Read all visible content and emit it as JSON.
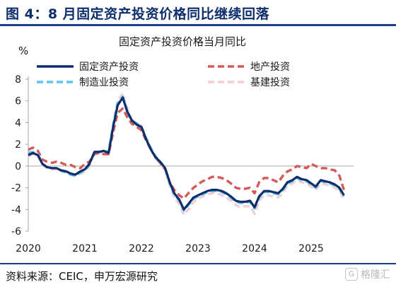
{
  "header": {
    "title": "图 4：8 月固定资产投资价格同比继续回落"
  },
  "footer": {
    "source": "资料来源：CEIC，申万宏源研究"
  },
  "watermark": {
    "text": "格隆汇",
    "icon": "gelonghui-logo-icon"
  },
  "chart_data": {
    "type": "line",
    "title": "固定资产投资价格当月同比",
    "ylabel": "%",
    "xlabel": "",
    "ylim": [
      -6,
      8
    ],
    "yticks": [
      -6,
      -4,
      -2,
      0,
      2,
      4,
      6,
      8
    ],
    "xlim": [
      2020.0,
      2025.75
    ],
    "xtick_labels": [
      "2020",
      "2021",
      "2022",
      "2023",
      "2024",
      "2025"
    ],
    "grid": false,
    "legend_position": "top",
    "x": [
      2020.0,
      2020.08,
      2020.17,
      2020.25,
      2020.33,
      2020.42,
      2020.5,
      2020.58,
      2020.67,
      2020.75,
      2020.83,
      2020.92,
      2021.0,
      2021.08,
      2021.17,
      2021.25,
      2021.33,
      2021.42,
      2021.5,
      2021.58,
      2021.67,
      2021.75,
      2021.83,
      2021.92,
      2022.0,
      2022.08,
      2022.17,
      2022.25,
      2022.33,
      2022.42,
      2022.5,
      2022.58,
      2022.67,
      2022.75,
      2022.83,
      2022.92,
      2023.0,
      2023.08,
      2023.17,
      2023.25,
      2023.33,
      2023.42,
      2023.5,
      2023.58,
      2023.67,
      2023.75,
      2023.83,
      2023.92,
      2024.0,
      2024.08,
      2024.17,
      2024.25,
      2024.33,
      2024.42,
      2024.5,
      2024.58,
      2024.67,
      2024.75,
      2024.83,
      2024.92,
      2025.0,
      2025.08,
      2025.17,
      2025.25,
      2025.33,
      2025.42,
      2025.5,
      2025.58
    ],
    "series": [
      {
        "name": "固定资产投资",
        "color": "#0d2d6b",
        "style": "solid",
        "values": [
          1.0,
          1.2,
          1.0,
          0.2,
          -0.1,
          -0.2,
          -0.2,
          -0.4,
          -0.5,
          -0.7,
          -0.8,
          -0.5,
          -0.3,
          0.2,
          1.3,
          1.3,
          1.4,
          1.2,
          3.6,
          5.6,
          6.3,
          5.0,
          4.2,
          3.8,
          3.6,
          2.5,
          1.5,
          0.8,
          0.4,
          -0.2,
          -1.5,
          -2.5,
          -3.1,
          -4.0,
          -3.5,
          -2.9,
          -2.7,
          -2.5,
          -2.3,
          -2.2,
          -2.2,
          -2.3,
          -2.5,
          -2.8,
          -3.2,
          -3.3,
          -3.3,
          -3.2,
          -3.8,
          -2.8,
          -2.3,
          -2.3,
          -2.4,
          -2.5,
          -2.1,
          -1.5,
          -1.3,
          -1.0,
          -1.2,
          -1.3,
          -1.6,
          -1.9,
          -1.3,
          -1.4,
          -1.5,
          -1.7,
          -2.0,
          -2.7
        ]
      },
      {
        "name": "地产投资",
        "color": "#d45a5a",
        "style": "dashed",
        "values": [
          1.5,
          1.7,
          1.4,
          0.6,
          0.4,
          0.3,
          0.4,
          0.3,
          0.1,
          0.1,
          -0.1,
          -0.2,
          0.2,
          0.4,
          1.1,
          1.2,
          1.1,
          1.1,
          3.1,
          4.9,
          5.3,
          4.5,
          3.9,
          3.6,
          3.3,
          2.4,
          1.5,
          0.8,
          0.3,
          -0.3,
          -1.5,
          -2.2,
          -2.7,
          -3.0,
          -2.5,
          -2.0,
          -1.7,
          -1.4,
          -1.2,
          -1.0,
          -1.0,
          -1.1,
          -1.3,
          -1.6,
          -2.0,
          -2.1,
          -2.1,
          -2.0,
          -2.5,
          -1.5,
          -1.1,
          -1.1,
          -1.3,
          -1.5,
          -0.9,
          -0.5,
          -0.3,
          0.0,
          -0.1,
          -0.2,
          0.2,
          0.0,
          -0.2,
          -0.2,
          -0.3,
          -0.4,
          -0.9,
          -2.2
        ]
      },
      {
        "name": "制造业投资",
        "color": "#5bc4f0",
        "style": "dashed",
        "values": [
          1.2,
          1.3,
          1.1,
          0.2,
          -0.1,
          -0.2,
          -0.2,
          -0.4,
          -0.6,
          -0.8,
          -0.9,
          -0.6,
          -0.4,
          0.1,
          1.3,
          1.3,
          1.4,
          1.3,
          3.8,
          5.8,
          6.4,
          5.1,
          4.2,
          3.9,
          3.6,
          2.6,
          1.6,
          0.9,
          0.4,
          -0.2,
          -1.6,
          -2.6,
          -3.2,
          -4.1,
          -3.6,
          -3.0,
          -2.8,
          -2.6,
          -2.4,
          -2.3,
          -2.3,
          -2.4,
          -2.6,
          -2.9,
          -3.3,
          -3.4,
          -3.4,
          -3.3,
          -3.9,
          -2.9,
          -2.4,
          -2.4,
          -2.5,
          -2.6,
          -2.2,
          -1.6,
          -1.4,
          -1.1,
          -1.3,
          -1.4,
          -1.7,
          -2.0,
          -1.4,
          -1.5,
          -1.6,
          -1.8,
          -2.1,
          -2.8
        ]
      },
      {
        "name": "基建投资",
        "color": "#f3cfd3",
        "style": "dashed",
        "values": [
          0.9,
          1.1,
          0.9,
          0.1,
          -0.2,
          -0.3,
          -0.3,
          -0.5,
          -0.6,
          -0.8,
          -0.9,
          -0.7,
          -0.5,
          0.0,
          1.2,
          1.2,
          1.3,
          1.1,
          3.8,
          6.0,
          6.7,
          5.3,
          4.3,
          3.9,
          3.7,
          2.6,
          1.5,
          0.7,
          0.2,
          -0.4,
          -1.8,
          -2.9,
          -3.5,
          -4.5,
          -4.0,
          -3.3,
          -3.0,
          -2.8,
          -2.6,
          -2.5,
          -2.5,
          -2.7,
          -2.9,
          -3.2,
          -3.6,
          -3.8,
          -3.7,
          -3.7,
          -4.4,
          -3.2,
          -2.7,
          -2.7,
          -2.8,
          -2.9,
          -2.5,
          -1.8,
          -1.6,
          -1.3,
          -1.5,
          -1.6,
          -1.9,
          -2.2,
          -1.6,
          -1.7,
          -1.8,
          -2.0,
          -2.3,
          -3.0
        ]
      }
    ]
  }
}
